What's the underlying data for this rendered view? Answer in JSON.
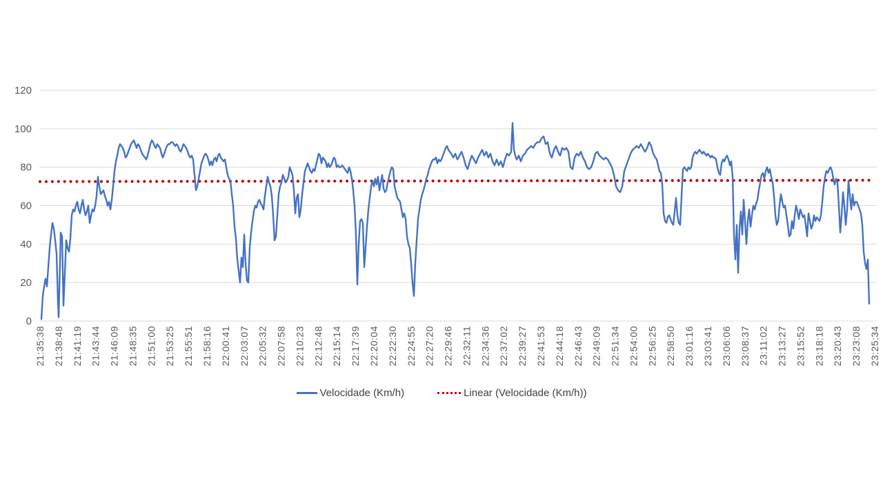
{
  "chart_data": {
    "type": "line",
    "title": "",
    "background": "#ffffff",
    "grid": "horizontal",
    "gridline_color": "#d9d9d9",
    "axis_label_color": "#595959",
    "y_axis": {
      "min": 0,
      "max": 120,
      "ticks": [
        0,
        20,
        40,
        60,
        80,
        100,
        120
      ]
    },
    "x_axis": {
      "tick_labels": [
        "21:35:38",
        "21:38:48",
        "21:41:19",
        "21:43:44",
        "21:46:09",
        "21:48:35",
        "21:51:00",
        "21:53:25",
        "21:55:51",
        "21:58:16",
        "22:00:41",
        "22:03:07",
        "22:05:32",
        "22:07:58",
        "22:10:23",
        "22:12:48",
        "22:15:14",
        "22:17:39",
        "22:20:04",
        "22:22:30",
        "22:24:55",
        "22:27:20",
        "22:29:46",
        "22:32:11",
        "22:34:36",
        "22:37:02",
        "22:39:27",
        "22:41:53",
        "22:44:18",
        "22:46:43",
        "22:49:09",
        "22:51:34",
        "22:54:00",
        "22:56:25",
        "22:58:50",
        "23:01:16",
        "23:03:41",
        "23:06:06",
        "23:08:37",
        "23:11:02",
        "23:13:27",
        "23:15:52",
        "23:18:18",
        "23:20:43",
        "23:23:08",
        "23:25:34"
      ]
    },
    "legend": {
      "position": "bottom",
      "entries": [
        {
          "label": "Velocidade (Km/h)",
          "color": "#4472C4",
          "style": "solid"
        },
        {
          "label": "Linear (Velocidade (Km/h))",
          "color": "#C00000",
          "style": "dotted"
        }
      ]
    },
    "trendline": {
      "name": "Linear (Velocidade (Km/h))",
      "color": "#C00000",
      "start_value": 72.5,
      "end_value": 73.2
    },
    "series": [
      {
        "name": "Velocidade (Km/h)",
        "color": "#4472C4",
        "points_format": "flat pairs [x_px, value_kmh] read from plot, x in screenshot pixels",
        "points": [
          60,
          1,
          62,
          13,
          64,
          18,
          66,
          22,
          68,
          18,
          70,
          28,
          72,
          38,
          74,
          45,
          76,
          51,
          78,
          48,
          80,
          42,
          82,
          35,
          84,
          10,
          85,
          2,
          87,
          30,
          88,
          46,
          90,
          44,
          92,
          8,
          94,
          25,
          96,
          42,
          98,
          38,
          100,
          36,
          102,
          43,
          104,
          55,
          106,
          58,
          108,
          57,
          110,
          60,
          112,
          62,
          114,
          58,
          116,
          56,
          118,
          60,
          120,
          63,
          122,
          58,
          124,
          55,
          126,
          57,
          128,
          60,
          130,
          51,
          132,
          55,
          134,
          58,
          136,
          57,
          138,
          60,
          140,
          65,
          142,
          75,
          144,
          70,
          146,
          66,
          148,
          67,
          150,
          68,
          152,
          65,
          154,
          63,
          156,
          60,
          158,
          62,
          160,
          58,
          162,
          63,
          164,
          70,
          166,
          78,
          168,
          83,
          170,
          86,
          172,
          90,
          174,
          92,
          176,
          91,
          178,
          90,
          180,
          88,
          182,
          85,
          184,
          86,
          186,
          88,
          188,
          90,
          190,
          92,
          192,
          93,
          194,
          94,
          196,
          92,
          198,
          90,
          200,
          92,
          202,
          91,
          204,
          89,
          206,
          87,
          208,
          86,
          210,
          85,
          212,
          84,
          214,
          86,
          216,
          89,
          218,
          92,
          220,
          94,
          222,
          93,
          224,
          91,
          226,
          90,
          228,
          92,
          230,
          91,
          232,
          90,
          234,
          87,
          236,
          85,
          238,
          87,
          240,
          89,
          242,
          91,
          244,
          92,
          246,
          92,
          248,
          93,
          250,
          93,
          252,
          92,
          254,
          91,
          256,
          92,
          258,
          91,
          260,
          89,
          262,
          88,
          264,
          90,
          266,
          92,
          268,
          91,
          270,
          90,
          272,
          88,
          274,
          86,
          276,
          85,
          278,
          86,
          280,
          84,
          282,
          76,
          284,
          68,
          286,
          70,
          288,
          74,
          290,
          78,
          292,
          82,
          294,
          84,
          296,
          86,
          298,
          87,
          300,
          86,
          302,
          84,
          304,
          81,
          306,
          83,
          308,
          81,
          310,
          84,
          312,
          85,
          314,
          83,
          316,
          86,
          318,
          87,
          320,
          85,
          322,
          84,
          324,
          83,
          326,
          84,
          328,
          80,
          330,
          76,
          332,
          74,
          334,
          73,
          336,
          66,
          338,
          60,
          340,
          49,
          342,
          43,
          344,
          32,
          346,
          26,
          348,
          20,
          350,
          33,
          352,
          28,
          354,
          45,
          356,
          30,
          358,
          21,
          360,
          20,
          362,
          38,
          364,
          46,
          366,
          52,
          368,
          57,
          370,
          60,
          372,
          59,
          374,
          62,
          376,
          63,
          378,
          61,
          380,
          60,
          382,
          58,
          384,
          65,
          386,
          70,
          388,
          75,
          390,
          72,
          392,
          70,
          394,
          65,
          396,
          55,
          398,
          42,
          400,
          44,
          402,
          55,
          404,
          66,
          406,
          70,
          408,
          72,
          410,
          76,
          412,
          74,
          414,
          72,
          416,
          73,
          418,
          75,
          420,
          80,
          422,
          78,
          424,
          76,
          426,
          68,
          428,
          56,
          430,
          64,
          432,
          66,
          434,
          54,
          436,
          58,
          438,
          66,
          440,
          72,
          442,
          78,
          444,
          80,
          446,
          82,
          448,
          80,
          450,
          78,
          452,
          77,
          454,
          79,
          456,
          78,
          458,
          81,
          460,
          84,
          462,
          87,
          464,
          86,
          466,
          82,
          468,
          85,
          470,
          84,
          472,
          83,
          474,
          80,
          476,
          82,
          478,
          80,
          480,
          81,
          482,
          83,
          484,
          85,
          486,
          84,
          488,
          80,
          490,
          81,
          492,
          80,
          494,
          80,
          496,
          81,
          498,
          80,
          500,
          79,
          502,
          78,
          504,
          77,
          506,
          80,
          508,
          78,
          510,
          74,
          512,
          68,
          514,
          60,
          516,
          45,
          518,
          19,
          520,
          40,
          522,
          52,
          524,
          53,
          526,
          51,
          528,
          28,
          530,
          38,
          532,
          49,
          534,
          58,
          536,
          64,
          538,
          70,
          540,
          73,
          542,
          70,
          544,
          74,
          546,
          71,
          548,
          75,
          550,
          68,
          552,
          72,
          554,
          76,
          556,
          69,
          558,
          67,
          560,
          68,
          562,
          72,
          564,
          75,
          566,
          78,
          568,
          80,
          570,
          79,
          572,
          70,
          574,
          67,
          576,
          64,
          578,
          63,
          580,
          62,
          582,
          58,
          584,
          54,
          586,
          56,
          588,
          53,
          590,
          44,
          592,
          40,
          594,
          38,
          596,
          30,
          598,
          20,
          600,
          13,
          602,
          30,
          604,
          42,
          606,
          53,
          608,
          58,
          610,
          63,
          612,
          66,
          614,
          68,
          616,
          71,
          618,
          74,
          620,
          76,
          622,
          79,
          624,
          81,
          626,
          83,
          628,
          84,
          630,
          84,
          632,
          85,
          634,
          82,
          636,
          84,
          638,
          83,
          640,
          84,
          642,
          86,
          644,
          88,
          646,
          90,
          648,
          91,
          650,
          89,
          652,
          88,
          654,
          87,
          657,
          85,
          660,
          87,
          663,
          84,
          666,
          86,
          669,
          88,
          672,
          85,
          675,
          81,
          678,
          79,
          681,
          83,
          684,
          86,
          687,
          84,
          690,
          82,
          693,
          85,
          696,
          87,
          699,
          89,
          702,
          86,
          705,
          88,
          708,
          85,
          711,
          87,
          714,
          83,
          717,
          81,
          720,
          84,
          723,
          81,
          726,
          83,
          729,
          80,
          732,
          84,
          735,
          87,
          738,
          86,
          741,
          88,
          743,
          103,
          745,
          89,
          747,
          86,
          749,
          84,
          752,
          86,
          755,
          83,
          758,
          86,
          761,
          87,
          764,
          89,
          767,
          90,
          770,
          91,
          773,
          90,
          776,
          92,
          779,
          93,
          782,
          93,
          785,
          95,
          788,
          96,
          791,
          92,
          794,
          93,
          797,
          87,
          800,
          85,
          803,
          89,
          806,
          91,
          809,
          88,
          812,
          86,
          815,
          90,
          818,
          89,
          821,
          90,
          824,
          88,
          827,
          80,
          830,
          79,
          833,
          85,
          836,
          87,
          839,
          86,
          842,
          88,
          845,
          85,
          848,
          83,
          851,
          80,
          854,
          79,
          857,
          80,
          860,
          83,
          863,
          87,
          866,
          88,
          869,
          86,
          872,
          85,
          875,
          84,
          878,
          85,
          881,
          84,
          884,
          82,
          887,
          80,
          890,
          76,
          893,
          70,
          896,
          68,
          899,
          67,
          902,
          70,
          905,
          78,
          908,
          81,
          911,
          84,
          914,
          87,
          917,
          89,
          920,
          90,
          923,
          91,
          926,
          90,
          929,
          92,
          932,
          90,
          935,
          88,
          938,
          90,
          941,
          93,
          944,
          91,
          947,
          87,
          950,
          85,
          952,
          84,
          954,
          81,
          956,
          78,
          958,
          77,
          960,
          71,
          962,
          56,
          964,
          52,
          966,
          51,
          968,
          54,
          970,
          55,
          972,
          53,
          974,
          51,
          976,
          50,
          978,
          57,
          980,
          64,
          982,
          55,
          984,
          51,
          986,
          50,
          988,
          65,
          990,
          79,
          992,
          80,
          994,
          79,
          996,
          78,
          998,
          80,
          1000,
          79,
          1002,
          80,
          1004,
          85,
          1006,
          87,
          1008,
          88,
          1010,
          87,
          1012,
          88,
          1014,
          89,
          1016,
          88,
          1018,
          87,
          1020,
          88,
          1022,
          87,
          1024,
          86,
          1026,
          87,
          1028,
          86,
          1030,
          85,
          1032,
          86,
          1034,
          85,
          1036,
          85,
          1038,
          84,
          1040,
          80,
          1042,
          77,
          1044,
          76,
          1046,
          82,
          1048,
          84,
          1050,
          83,
          1052,
          85,
          1054,
          86,
          1056,
          84,
          1058,
          81,
          1060,
          83,
          1062,
          75,
          1064,
          45,
          1066,
          32,
          1068,
          50,
          1070,
          25,
          1072,
          48,
          1074,
          57,
          1076,
          45,
          1078,
          63,
          1080,
          52,
          1082,
          40,
          1084,
          52,
          1086,
          58,
          1088,
          49,
          1090,
          55,
          1092,
          60,
          1094,
          58,
          1096,
          61,
          1098,
          63,
          1100,
          68,
          1102,
          72,
          1104,
          76,
          1106,
          77,
          1108,
          74,
          1110,
          78,
          1112,
          80,
          1114,
          77,
          1116,
          79,
          1118,
          75,
          1120,
          72,
          1122,
          65,
          1124,
          55,
          1126,
          50,
          1128,
          52,
          1130,
          60,
          1132,
          66,
          1134,
          62,
          1136,
          59,
          1138,
          60,
          1140,
          55,
          1142,
          50,
          1144,
          44,
          1146,
          45,
          1148,
          52,
          1150,
          48,
          1152,
          55,
          1154,
          60,
          1156,
          57,
          1158,
          53,
          1160,
          58,
          1162,
          56,
          1164,
          54,
          1166,
          55,
          1168,
          50,
          1170,
          44,
          1172,
          56,
          1174,
          52,
          1176,
          48,
          1178,
          50,
          1180,
          55,
          1182,
          52,
          1184,
          54,
          1186,
          53,
          1188,
          52,
          1190,
          55,
          1192,
          62,
          1194,
          70,
          1196,
          75,
          1198,
          78,
          1200,
          77,
          1202,
          79,
          1204,
          80,
          1206,
          78,
          1208,
          74,
          1210,
          71,
          1212,
          74,
          1214,
          72,
          1216,
          60,
          1218,
          46,
          1220,
          55,
          1222,
          67,
          1224,
          60,
          1226,
          50,
          1228,
          58,
          1230,
          73,
          1232,
          65,
          1234,
          58,
          1236,
          66,
          1238,
          60,
          1240,
          62,
          1242,
          62,
          1244,
          60,
          1246,
          58,
          1248,
          56,
          1250,
          50,
          1252,
          36,
          1254,
          30,
          1256,
          27,
          1258,
          32,
          1260,
          9
        ]
      }
    ]
  }
}
